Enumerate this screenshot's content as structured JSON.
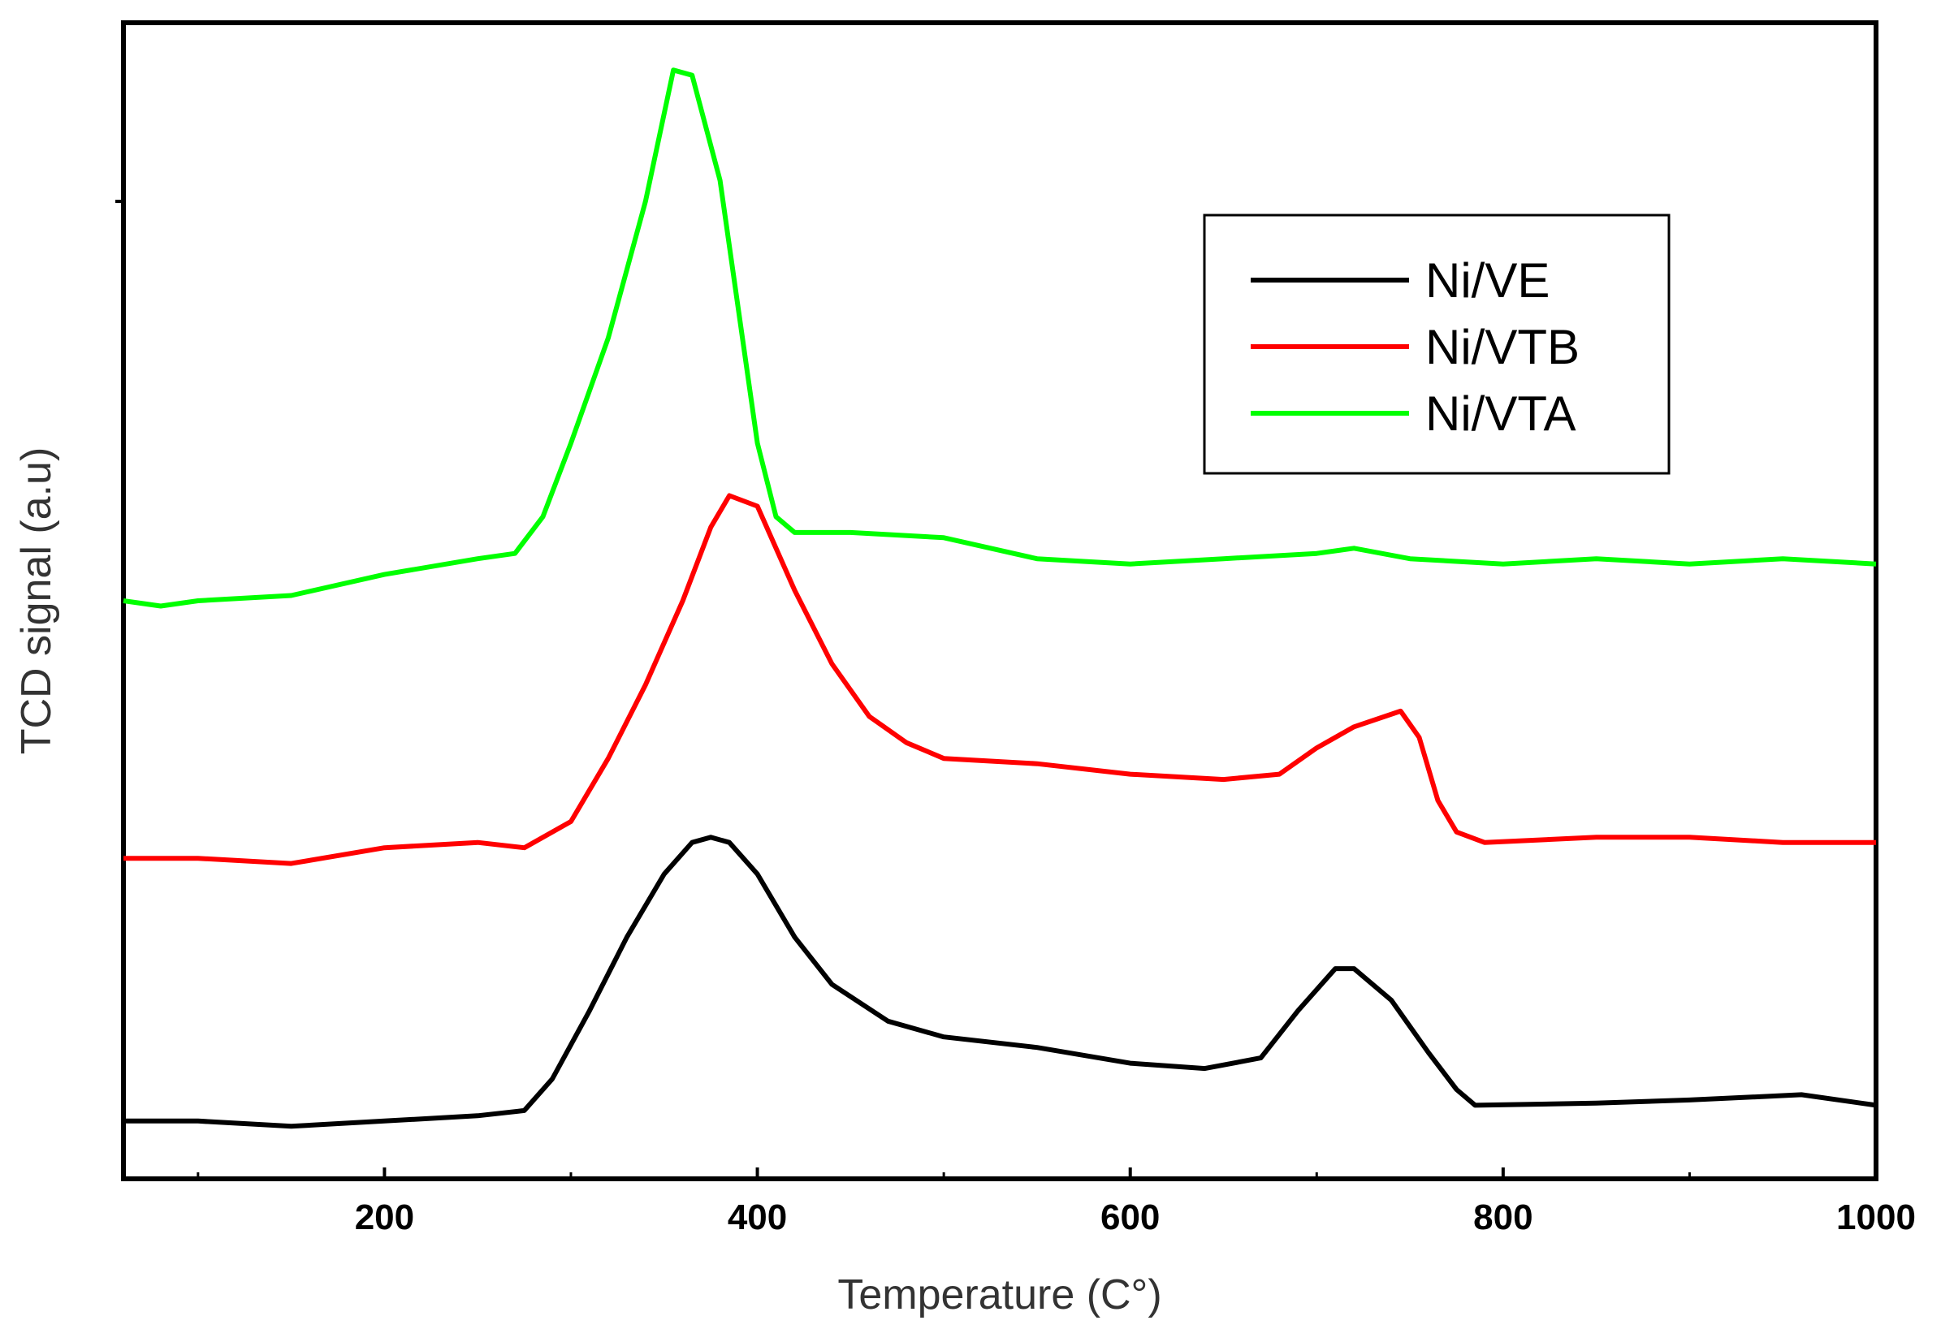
{
  "chart_data": {
    "type": "line",
    "xlabel": "Temperature (C°)",
    "ylabel": "TCD signal (a.u)",
    "xlim": [
      60,
      1000
    ],
    "ylim": [
      0,
      11
    ],
    "x_ticks": [
      200,
      400,
      600,
      800,
      1000
    ],
    "y_ticks": [],
    "grid": false,
    "legend_position": "top-right",
    "series": [
      {
        "name": "Ni/VE",
        "color": "#000000",
        "points": [
          [
            60,
            0.55
          ],
          [
            100,
            0.55
          ],
          [
            150,
            0.5
          ],
          [
            200,
            0.55
          ],
          [
            250,
            0.6
          ],
          [
            275,
            0.65
          ],
          [
            290,
            0.95
          ],
          [
            310,
            1.6
          ],
          [
            330,
            2.3
          ],
          [
            350,
            2.9
          ],
          [
            365,
            3.2
          ],
          [
            375,
            3.25
          ],
          [
            385,
            3.2
          ],
          [
            400,
            2.9
          ],
          [
            420,
            2.3
          ],
          [
            440,
            1.85
          ],
          [
            470,
            1.5
          ],
          [
            500,
            1.35
          ],
          [
            550,
            1.25
          ],
          [
            600,
            1.1
          ],
          [
            640,
            1.05
          ],
          [
            670,
            1.15
          ],
          [
            690,
            1.6
          ],
          [
            710,
            2.0
          ],
          [
            720,
            2.0
          ],
          [
            740,
            1.7
          ],
          [
            760,
            1.2
          ],
          [
            775,
            0.85
          ],
          [
            785,
            0.7
          ],
          [
            850,
            0.72
          ],
          [
            900,
            0.75
          ],
          [
            960,
            0.8
          ],
          [
            1000,
            0.7
          ]
        ]
      },
      {
        "name": "Ni/VTB",
        "color": "#ff0000",
        "points": [
          [
            60,
            3.05
          ],
          [
            100,
            3.05
          ],
          [
            150,
            3.0
          ],
          [
            200,
            3.15
          ],
          [
            250,
            3.2
          ],
          [
            275,
            3.15
          ],
          [
            300,
            3.4
          ],
          [
            320,
            4.0
          ],
          [
            340,
            4.7
          ],
          [
            360,
            5.5
          ],
          [
            375,
            6.2
          ],
          [
            385,
            6.5
          ],
          [
            400,
            6.4
          ],
          [
            420,
            5.6
          ],
          [
            440,
            4.9
          ],
          [
            460,
            4.4
          ],
          [
            480,
            4.15
          ],
          [
            500,
            4.0
          ],
          [
            550,
            3.95
          ],
          [
            600,
            3.85
          ],
          [
            650,
            3.8
          ],
          [
            680,
            3.85
          ],
          [
            700,
            4.1
          ],
          [
            720,
            4.3
          ],
          [
            745,
            4.45
          ],
          [
            755,
            4.2
          ],
          [
            765,
            3.6
          ],
          [
            775,
            3.3
          ],
          [
            790,
            3.2
          ],
          [
            850,
            3.25
          ],
          [
            900,
            3.25
          ],
          [
            950,
            3.2
          ],
          [
            1000,
            3.2
          ]
        ]
      },
      {
        "name": "Ni/VTA",
        "color": "#00ff00",
        "points": [
          [
            60,
            5.5
          ],
          [
            80,
            5.45
          ],
          [
            100,
            5.5
          ],
          [
            150,
            5.55
          ],
          [
            200,
            5.75
          ],
          [
            250,
            5.9
          ],
          [
            270,
            5.95
          ],
          [
            285,
            6.3
          ],
          [
            300,
            7.0
          ],
          [
            320,
            8.0
          ],
          [
            340,
            9.3
          ],
          [
            355,
            10.55
          ],
          [
            365,
            10.5
          ],
          [
            380,
            9.5
          ],
          [
            392,
            8.0
          ],
          [
            400,
            7.0
          ],
          [
            410,
            6.3
          ],
          [
            420,
            6.15
          ],
          [
            450,
            6.15
          ],
          [
            500,
            6.1
          ],
          [
            550,
            5.9
          ],
          [
            600,
            5.85
          ],
          [
            650,
            5.9
          ],
          [
            700,
            5.95
          ],
          [
            720,
            6.0
          ],
          [
            750,
            5.9
          ],
          [
            800,
            5.85
          ],
          [
            850,
            5.9
          ],
          [
            900,
            5.85
          ],
          [
            950,
            5.9
          ],
          [
            1000,
            5.85
          ]
        ]
      }
    ]
  }
}
